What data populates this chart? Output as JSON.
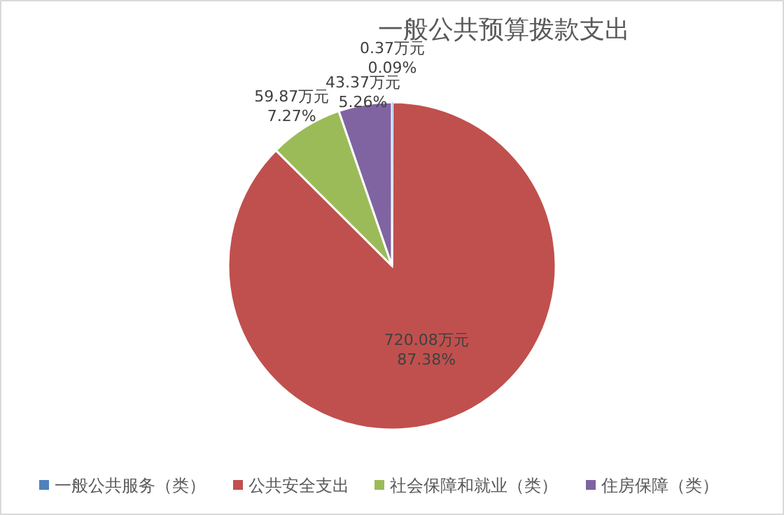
{
  "chart_data": {
    "type": "pie",
    "title": "一般公共预算拨款支出",
    "categories": [
      "一般公共服务（类）",
      "公共安全支出",
      "社会保障和就业（类）",
      "住房保障（类）"
    ],
    "values": [
      0.37,
      720.08,
      59.87,
      43.37
    ],
    "colors": [
      "#4f81bd",
      "#c0504d",
      "#9bbb59",
      "#8064a2"
    ],
    "value_labels": [
      "0.37万元\n0.09%",
      "720.08万元\n87.38%",
      "59.87万元\n7.27%",
      "43.37万元\n5.26%"
    ],
    "legend": "bottom"
  }
}
